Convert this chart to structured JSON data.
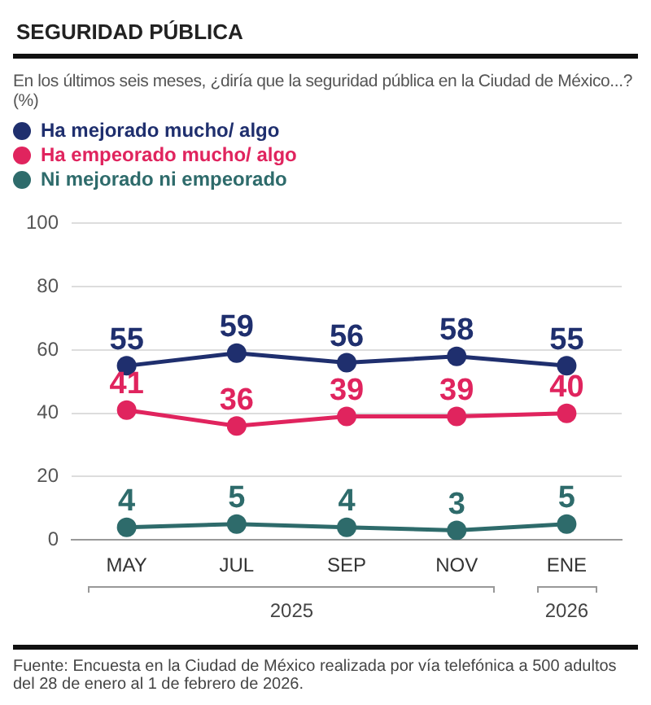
{
  "chart_data": {
    "type": "line",
    "title": "SEGURIDAD PÚBLICA",
    "subtitle": "En los últimos seis meses, ¿diría que la seguridad pública en la Ciudad de México...? (%)",
    "categories": [
      "MAY",
      "JUL",
      "SEP",
      "NOV",
      "ENE"
    ],
    "series": [
      {
        "name": "Ha mejorado mucho/ algo",
        "color": "#1f2f6e",
        "values": [
          55,
          59,
          56,
          58,
          55
        ]
      },
      {
        "name": "Ha empeorado mucho/ algo",
        "color": "#e0245e",
        "values": [
          41,
          36,
          39,
          39,
          40
        ]
      },
      {
        "name": "Ni mejorado ni empeorado",
        "color": "#2e6b6b",
        "values": [
          4,
          5,
          4,
          3,
          5
        ]
      }
    ],
    "ylim": [
      0,
      100
    ],
    "yticks": [
      0,
      20,
      40,
      60,
      80,
      100
    ],
    "grid": "y",
    "legend": "top left",
    "marker": "circle",
    "line_style": "solid",
    "data_labels": true,
    "annotations": [
      "2025",
      "2026",
      "Fuente: Encuesta en la Ciudad de México realizada por vía telefónica a 500 adultos del 28 de enero al 1 de febrero de 2026."
    ]
  }
}
